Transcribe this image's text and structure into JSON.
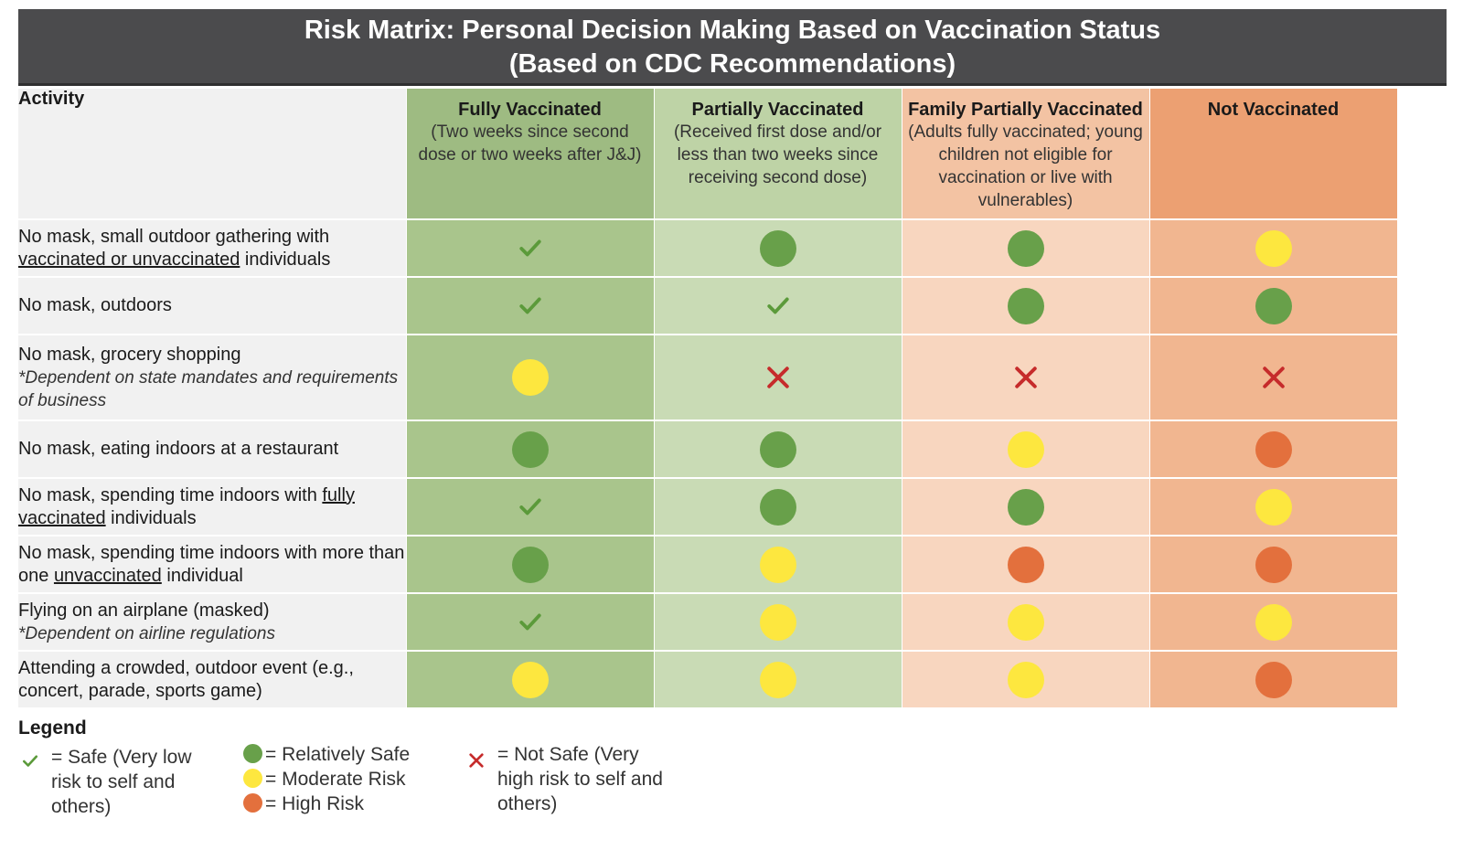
{
  "title": {
    "line1": "Risk Matrix: Personal Decision Making Based on Vaccination Status",
    "line2": "(Based on CDC Recommendations)"
  },
  "colors": {
    "safe": "#5b9a3a",
    "relatively_safe": "#68a04a",
    "moderate": "#fde73f",
    "high": "#e3703d",
    "not_safe": "#c62b2b"
  },
  "header": {
    "activity": "Activity",
    "columns": [
      {
        "title": "Fully Vaccinated",
        "sub": "(Two weeks since second dose or two weeks after J&J)"
      },
      {
        "title": "Partially Vaccinated",
        "sub": "(Received first dose and/or less than two weeks since receiving second dose)"
      },
      {
        "title": "Family Partially Vaccinated",
        "sub": "(Adults fully vaccinated; young children not eligible for vaccination or live with vulnerables)"
      },
      {
        "title": "Not Vaccinated",
        "sub": ""
      }
    ]
  },
  "rows": [
    {
      "label_a": "No mask, small outdoor gathering with ",
      "label_u": "vaccinated or unvaccinated",
      "label_b": " individuals",
      "note": "",
      "ratings": [
        "safe",
        "relatively_safe",
        "relatively_safe",
        "moderate"
      ]
    },
    {
      "label_a": "No mask, outdoors",
      "label_u": "",
      "label_b": "",
      "note": "",
      "ratings": [
        "safe",
        "safe",
        "relatively_safe",
        "relatively_safe"
      ]
    },
    {
      "label_a": "No mask, grocery shopping",
      "label_u": "",
      "label_b": "",
      "note": "*Dependent on state mandates and requirements of business",
      "ratings": [
        "moderate",
        "not_safe",
        "not_safe",
        "not_safe"
      ]
    },
    {
      "label_a": "No mask, eating indoors at a restaurant",
      "label_u": "",
      "label_b": "",
      "note": "",
      "ratings": [
        "relatively_safe",
        "relatively_safe",
        "moderate",
        "high"
      ]
    },
    {
      "label_a": "No mask, spending time indoors with ",
      "label_u": "fully vaccinated",
      "label_b": " individuals",
      "note": "",
      "ratings": [
        "safe",
        "relatively_safe",
        "relatively_safe",
        "moderate"
      ]
    },
    {
      "label_a": "No mask, spending time indoors with more than one ",
      "label_u": "unvaccinated",
      "label_b": " individual",
      "note": "",
      "ratings": [
        "relatively_safe",
        "moderate",
        "high",
        "high"
      ]
    },
    {
      "label_a": "Flying on an airplane (masked)",
      "label_u": "",
      "label_b": "",
      "note": "*Dependent on airline regulations",
      "ratings": [
        "safe",
        "moderate",
        "moderate",
        "moderate"
      ]
    },
    {
      "label_a": "Attending a crowded, outdoor event (e.g., concert, parade, sports game)",
      "label_u": "",
      "label_b": "",
      "note": "",
      "ratings": [
        "moderate",
        "moderate",
        "moderate",
        "high"
      ]
    }
  ],
  "legend": {
    "title": "Legend",
    "safe": "= Safe (Very low risk to self and others)",
    "relatively_safe": "= Relatively Safe",
    "moderate": "= Moderate Risk",
    "high": "=  High Risk",
    "not_safe": "= Not Safe (Very high risk to self and others)"
  }
}
